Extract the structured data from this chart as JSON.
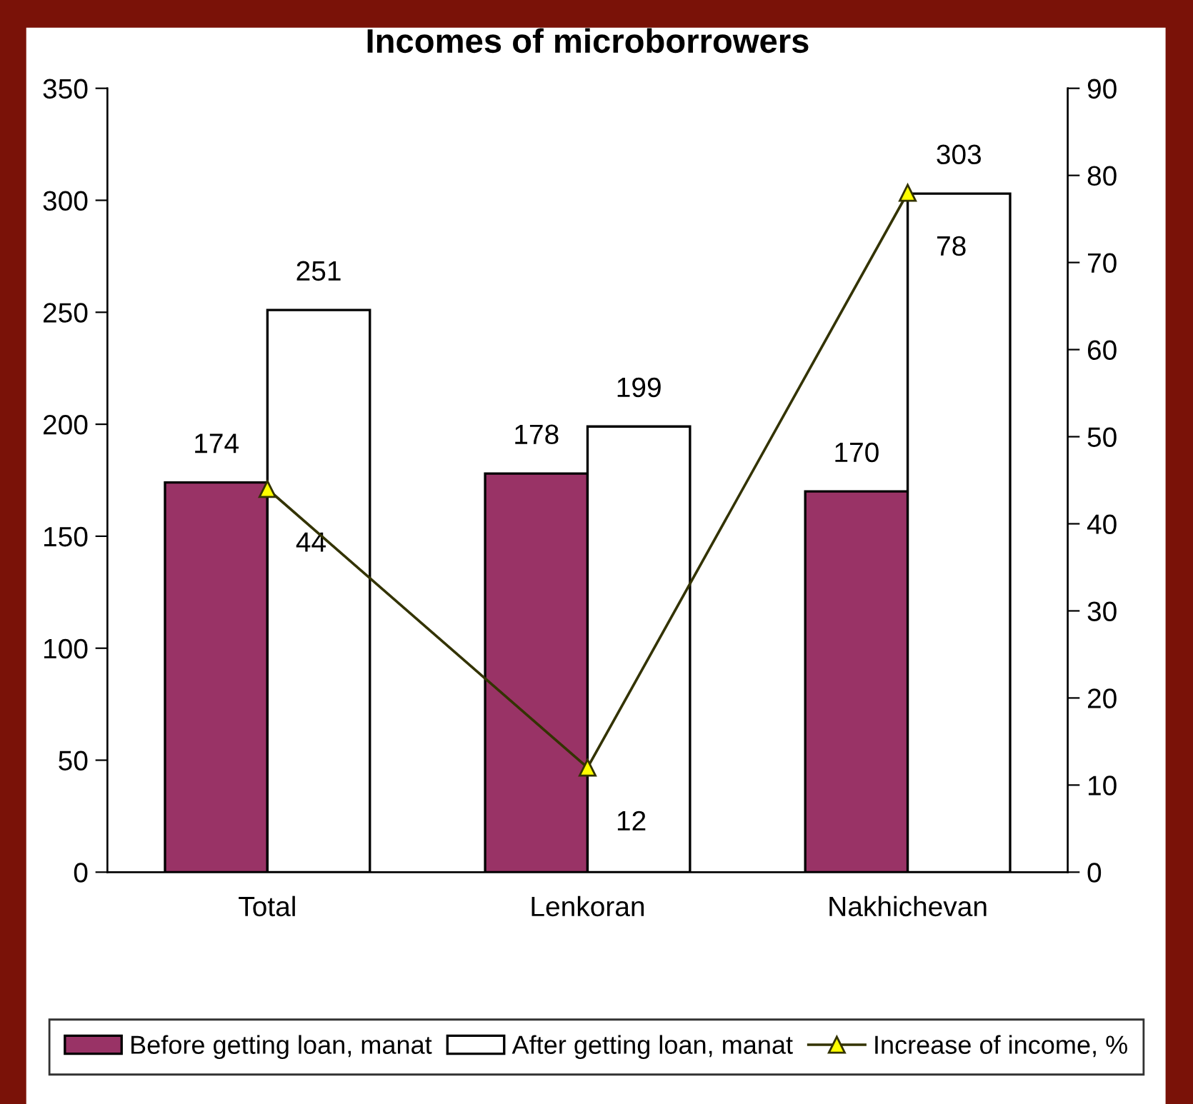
{
  "chart_data": {
    "type": "bar",
    "title": "Incomes of microborrowers",
    "categories": [
      "Total",
      "Lenkoran",
      "Nakhichevan"
    ],
    "series": [
      {
        "name": "Before getting loan, manat",
        "color": "#993366",
        "values": [
          174,
          178,
          170
        ]
      },
      {
        "name": "After getting loan, manat",
        "color": "#ffffff",
        "values": [
          251,
          199,
          303
        ]
      },
      {
        "name": "Increase of income, %",
        "type": "line",
        "axis": "y2",
        "color": "#333300",
        "marker": "triangle",
        "values": [
          44,
          12,
          78
        ]
      }
    ],
    "data_labels": true,
    "ylim": [
      0,
      350
    ],
    "yticks": [
      0,
      50,
      100,
      150,
      200,
      250,
      300,
      350
    ],
    "y2lim": [
      0,
      90
    ],
    "y2ticks": [
      0,
      10,
      20,
      30,
      40,
      50,
      60,
      70,
      80,
      90
    ],
    "grid": false,
    "legend": "bottom"
  }
}
